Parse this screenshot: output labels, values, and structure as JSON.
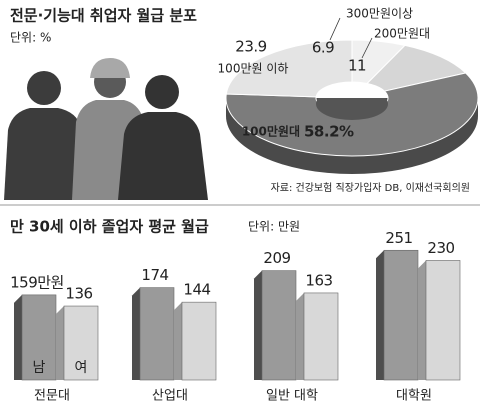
{
  "chart_data": [
    {
      "type": "pie",
      "title": "전문·기능대 취업자 월급 분포",
      "unit": "단위: %",
      "source": "자료: 건강보험 직장가입자 DB, 이재선국회의원",
      "categories": [
        "300만원이상",
        "200만원대",
        "100만원대",
        "100만원 이하"
      ],
      "values": [
        6.9,
        11,
        58.2,
        23.9
      ],
      "value_labels": [
        "6.9",
        "11",
        "58.2%",
        "23.9"
      ],
      "colors": [
        "#f0f0f0",
        "#d6d6d6",
        "#7c7c7c",
        "#e4e4e4"
      ]
    },
    {
      "type": "bar",
      "title": "만 30세 이하 졸업자 평균 월급",
      "unit": "단위: 만원",
      "categories": [
        "전문대",
        "산업대",
        "일반 대학",
        "대학원"
      ],
      "series": [
        {
          "name": "남",
          "color": "#9a9a9a",
          "values": [
            159,
            174,
            209,
            251
          ],
          "value_labels": [
            "159만원",
            "174",
            "209",
            "251"
          ]
        },
        {
          "name": "여",
          "color": "#d8d8d8",
          "values": [
            136,
            144,
            163,
            230
          ]
        }
      ]
    }
  ]
}
